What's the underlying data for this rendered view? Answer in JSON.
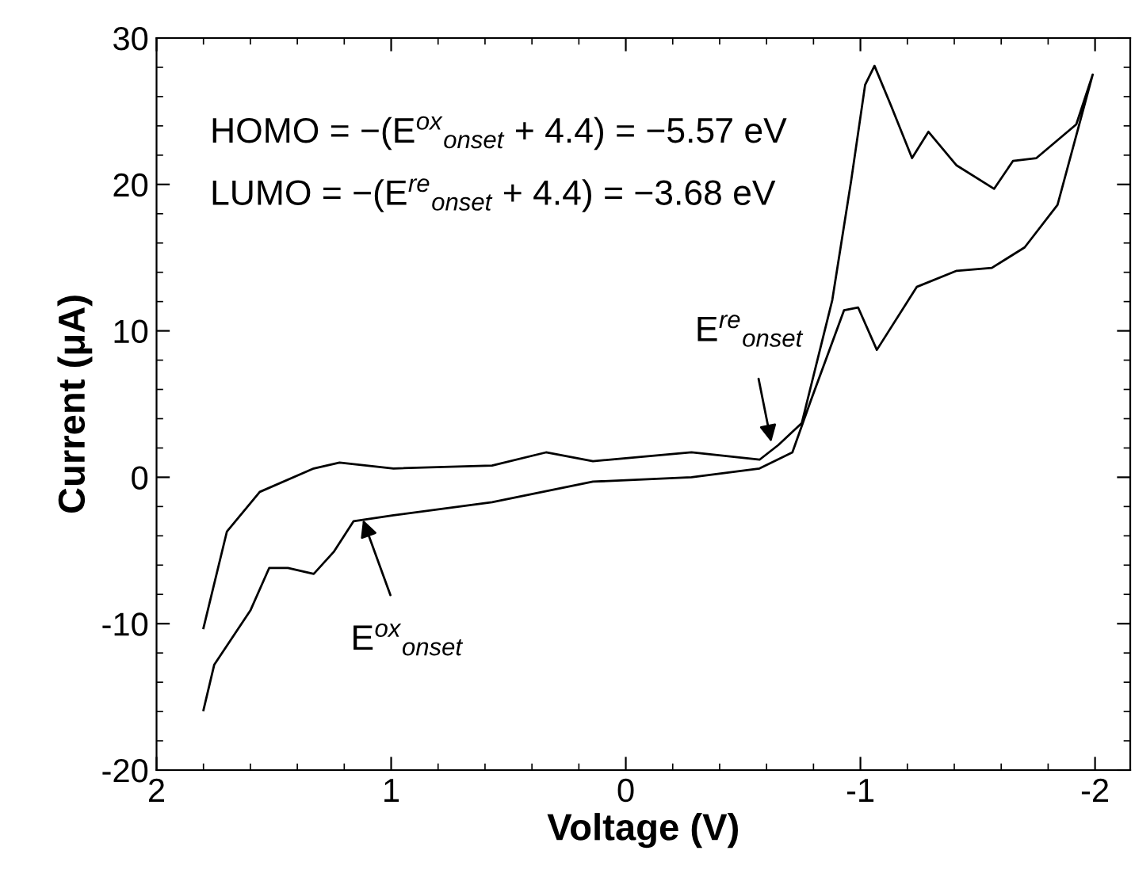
{
  "chart_data": {
    "type": "line",
    "xlabel": "Voltage (V)",
    "ylabel": "Current (μA)",
    "xlim": [
      2,
      -2.15
    ],
    "ylim": [
      -20,
      30
    ],
    "xticks": [
      2,
      1,
      0,
      {
        "value": -1,
        "label": "-1"
      },
      {
        "value": -2,
        "label": "-2"
      }
    ],
    "yticks": [
      {
        "value": -20,
        "label": "-20"
      },
      {
        "value": -10,
        "label": "-10"
      },
      0,
      10,
      20,
      30
    ],
    "grid": false,
    "legend": false,
    "marker": "none",
    "line_style": "solid",
    "series": [
      {
        "color": "#000000",
        "x": [
          1.8,
          1.754,
          1.6,
          1.52,
          1.44,
          1.33,
          1.245,
          1.16,
          0.99,
          0.57,
          0.14,
          -0.28,
          -0.57,
          -0.71,
          -0.79,
          -0.93,
          -0.99,
          -1.07,
          -1.24,
          -1.41,
          -1.56,
          -1.7,
          -1.84,
          -1.99,
          -1.92,
          -1.75,
          -1.65,
          -1.57,
          -1.41,
          -1.29,
          -1.22,
          -1.13,
          -1.06,
          -1.02,
          -0.96,
          -0.88,
          -0.75,
          -0.65,
          -0.57,
          -0.28,
          0.0,
          0.14,
          0.34,
          0.57,
          0.99,
          1.22,
          1.33,
          1.56,
          1.7,
          1.8
        ],
        "values": [
          -15.9,
          -12.8,
          -9.1,
          -6.2,
          -6.2,
          -6.6,
          -5.1,
          -3.0,
          -2.6,
          -1.7,
          -0.3,
          0.0,
          0.6,
          1.7,
          5.3,
          11.4,
          11.6,
          8.7,
          13.0,
          14.1,
          14.3,
          15.7,
          18.6,
          27.5,
          24.1,
          21.8,
          21.6,
          19.7,
          21.3,
          23.6,
          21.8,
          25.4,
          28.1,
          26.8,
          20.2,
          12.1,
          3.7,
          2.2,
          1.2,
          1.7,
          1.3,
          1.1,
          1.7,
          0.8,
          0.6,
          1.0,
          0.6,
          -1.0,
          -3.7,
          -10.3
        ]
      }
    ],
    "annotations": [
      "HOMO = −(E$^{ox}$$_{onset}$ + 4.4) = −5.57 eV",
      "LUMO = −(E$^{re}$$_{onset}$ + 4.4) = −3.68 eV",
      {
        "text": "E$^{re}$$_{onset}$",
        "x": -0.62,
        "y": 2.4
      },
      {
        "text": "E$^{ox}$$_{onset}$",
        "x": 1.12,
        "y": -2.9
      }
    ]
  }
}
